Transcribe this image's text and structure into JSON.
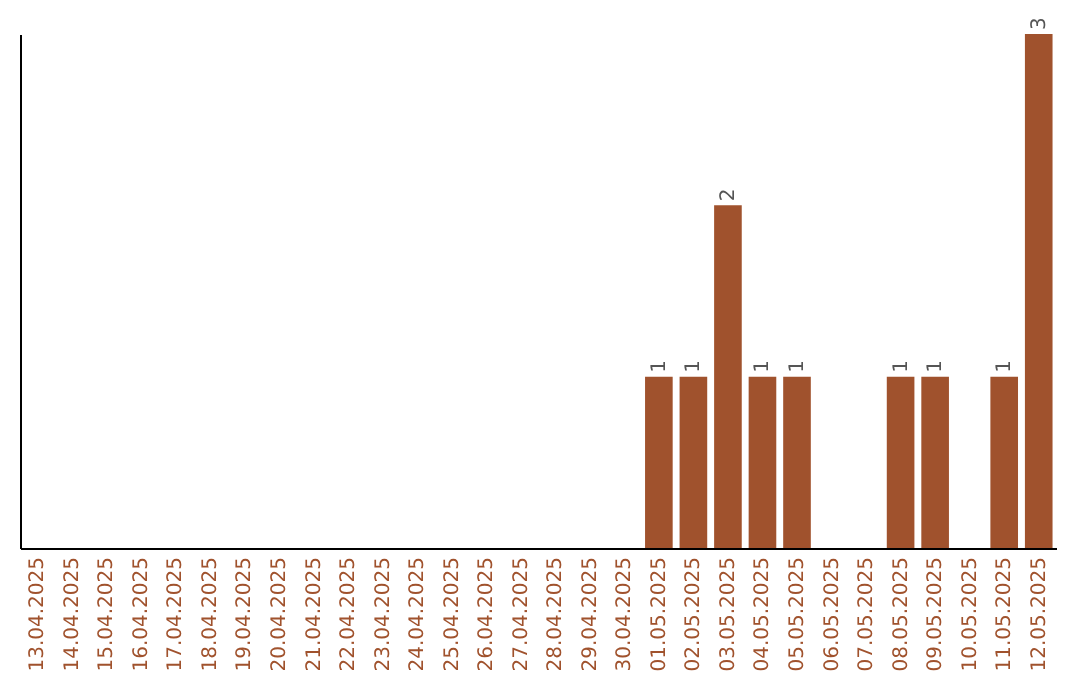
{
  "chart_data": {
    "type": "bar",
    "categories": [
      "13.04.2025",
      "14.04.2025",
      "15.04.2025",
      "16.04.2025",
      "17.04.2025",
      "18.04.2025",
      "19.04.2025",
      "20.04.2025",
      "21.04.2025",
      "22.04.2025",
      "23.04.2025",
      "24.04.2025",
      "25.04.2025",
      "26.04.2025",
      "27.04.2025",
      "28.04.2025",
      "29.04.2025",
      "30.04.2025",
      "01.05.2025",
      "02.05.2025",
      "03.05.2025",
      "04.05.2025",
      "05.05.2025",
      "06.05.2025",
      "07.05.2025",
      "08.05.2025",
      "09.05.2025",
      "10.05.2025",
      "11.05.2025",
      "12.05.2025"
    ],
    "values": [
      null,
      null,
      null,
      null,
      null,
      null,
      null,
      null,
      null,
      null,
      null,
      null,
      null,
      null,
      null,
      null,
      null,
      null,
      1,
      1,
      2,
      1,
      1,
      null,
      null,
      1,
      1,
      null,
      1,
      3
    ],
    "data_labels": true,
    "color": "#a0522d"
  }
}
